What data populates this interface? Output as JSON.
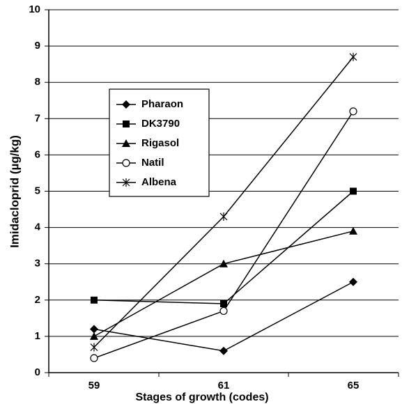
{
  "chart_data": {
    "type": "line",
    "x_label": "Stages of growth (codes)",
    "y_label": "Imidacloprid (µg/kg)",
    "categories": [
      "59",
      "61",
      "65"
    ],
    "series": [
      {
        "name": "Pharaon",
        "color": "#000000",
        "marker": "diamond",
        "values": [
          1.2,
          0.6,
          2.5
        ]
      },
      {
        "name": "DK3790",
        "color": "#000000",
        "marker": "square",
        "values": [
          2.0,
          1.9,
          5.0
        ]
      },
      {
        "name": "Rigasol",
        "color": "#000000",
        "marker": "triangle",
        "values": [
          1.0,
          3.0,
          3.9
        ]
      },
      {
        "name": "Natil",
        "color": "#000000",
        "marker": "circle-open",
        "values": [
          0.4,
          1.7,
          7.2
        ]
      },
      {
        "name": "Albena",
        "color": "#000000",
        "marker": "asterisk",
        "values": [
          0.7,
          4.3,
          8.7
        ]
      }
    ],
    "ylim": [
      0,
      10
    ],
    "yticks": [
      0,
      1,
      2,
      3,
      4,
      5,
      6,
      7,
      8,
      9,
      10
    ],
    "grid": true
  }
}
